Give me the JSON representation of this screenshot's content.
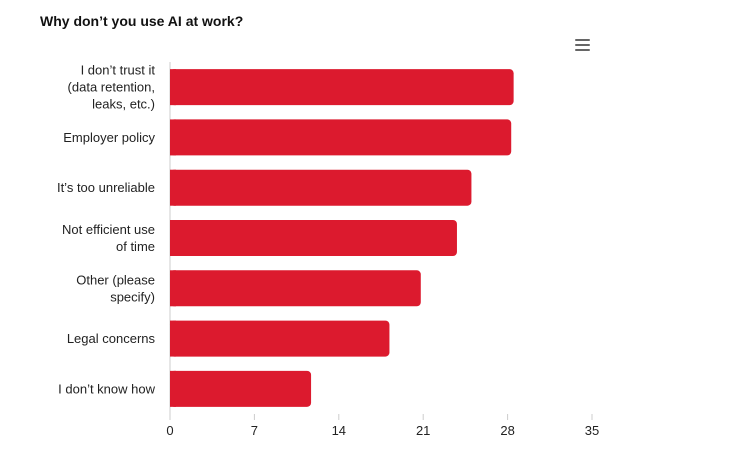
{
  "chart_data": {
    "type": "bar",
    "orientation": "horizontal",
    "title": "Why don’t you use AI at work?",
    "xlabel": "",
    "ylabel": "",
    "categories": [
      "I don’t trust it (data retention, leaks, etc.)",
      "Employer policy",
      "It’s too unreliable",
      "Not efficient use of time",
      "Other (please specify)",
      "Legal concerns",
      "I don’t know how"
    ],
    "category_lines": [
      [
        "I don’t trust it",
        "(data retention,",
        "leaks, etc.)"
      ],
      [
        "Employer policy"
      ],
      [
        "It’s too unreliable"
      ],
      [
        "Not efficient use",
        "of time"
      ],
      [
        "Other (please",
        "specify)"
      ],
      [
        "Legal concerns"
      ],
      [
        "I don’t know how"
      ]
    ],
    "values": [
      28.5,
      28.3,
      25,
      23.8,
      20.8,
      18.2,
      11.7
    ],
    "xlim": [
      0,
      35
    ],
    "xticks": [
      "0",
      "7",
      "14",
      "21",
      "28",
      "35"
    ],
    "xtick_values": [
      0,
      7,
      14,
      21,
      28,
      35
    ],
    "grid": false,
    "legend": "none",
    "bar_color": "#DC1A2E"
  },
  "toolbar": {
    "menu_icon": "hamburger-menu-icon"
  }
}
